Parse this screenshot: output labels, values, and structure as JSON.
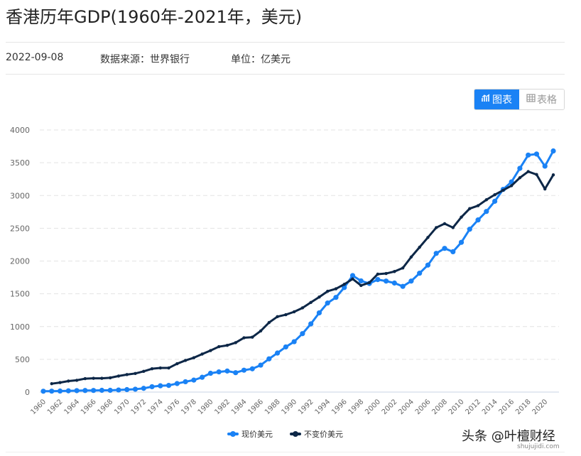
{
  "header": {
    "title": "香港历年GDP(1960年-2021年，美元)",
    "date": "2022-09-08",
    "source": "数据来源：世界银行",
    "unit": "单位：亿美元"
  },
  "toggle": {
    "chart_label": "图表",
    "table_label": "表格",
    "chart_icon": "bar-chart-icon",
    "table_icon": "table-grid-icon",
    "active": "chart"
  },
  "legend": {
    "current": "现价美元",
    "constant": "不变价美元"
  },
  "watermark": {
    "main": "头条 @叶檀财经",
    "sub": "shujujidi.com"
  },
  "colors": {
    "current": "#1a82f5",
    "constant": "#0d2747",
    "grid": "#e3e3e3",
    "axis_text": "#666666",
    "accent": "#1a82f5"
  },
  "chart_data": {
    "type": "line",
    "title": "香港历年GDP(1960年-2021年，美元)",
    "xlabel": "",
    "ylabel": "亿美元",
    "ylim": [
      0,
      4000
    ],
    "yticks": [
      0,
      500,
      1000,
      1500,
      2000,
      2500,
      3000,
      3500,
      4000
    ],
    "grid": true,
    "legend_position": "bottom",
    "x": [
      1960,
      1961,
      1962,
      1963,
      1964,
      1965,
      1966,
      1967,
      1968,
      1969,
      1970,
      1971,
      1972,
      1973,
      1974,
      1975,
      1976,
      1977,
      1978,
      1979,
      1980,
      1981,
      1982,
      1983,
      1984,
      1985,
      1986,
      1987,
      1988,
      1989,
      1990,
      1991,
      1992,
      1993,
      1994,
      1995,
      1996,
      1997,
      1998,
      1999,
      2000,
      2001,
      2002,
      2003,
      2004,
      2005,
      2006,
      2007,
      2008,
      2009,
      2010,
      2011,
      2012,
      2013,
      2014,
      2015,
      2016,
      2017,
      2018,
      2019,
      2020,
      2021
    ],
    "xtick_labels": [
      "1960",
      "1962",
      "1964",
      "1966",
      "1968",
      "1970",
      "1972",
      "1974",
      "1976",
      "1978",
      "1980",
      "1982",
      "1984",
      "1986",
      "1988",
      "1990",
      "1992",
      "1994",
      "1996",
      "1998",
      "2000",
      "2002",
      "2004",
      "2006",
      "2008",
      "2010",
      "2012",
      "2014",
      "2016",
      "2018",
      "2020"
    ],
    "series": [
      {
        "name": "现价美元",
        "color": "#1a82f5",
        "values": [
          13,
          14,
          16,
          19,
          22,
          24,
          25,
          27,
          27,
          32,
          38,
          44,
          57,
          82,
          96,
          102,
          130,
          158,
          183,
          226,
          287,
          308,
          321,
          296,
          334,
          355,
          411,
          507,
          596,
          689,
          769,
          892,
          1041,
          1209,
          1359,
          1445,
          1596,
          1778,
          1697,
          1657,
          1717,
          1694,
          1664,
          1613,
          1694,
          1814,
          1938,
          2117,
          2193,
          2142,
          2285,
          2486,
          2627,
          2757,
          2912,
          3094,
          3208,
          3415,
          3617,
          3633,
          3448,
          3680
        ]
      },
      {
        "name": "不变价美元",
        "color": "#0d2747",
        "values": [
          null,
          128,
          145,
          168,
          180,
          205,
          210,
          210,
          218,
          245,
          267,
          284,
          316,
          356,
          368,
          368,
          433,
          483,
          524,
          580,
          634,
          693,
          713,
          754,
          829,
          838,
          933,
          1061,
          1151,
          1181,
          1225,
          1285,
          1368,
          1450,
          1538,
          1576,
          1645,
          1727,
          1627,
          1670,
          1800,
          1810,
          1840,
          1894,
          2061,
          2210,
          2360,
          2510,
          2570,
          2510,
          2670,
          2800,
          2845,
          2935,
          3012,
          3081,
          3150,
          3271,
          3365,
          3320,
          3100,
          3315
        ]
      }
    ]
  }
}
